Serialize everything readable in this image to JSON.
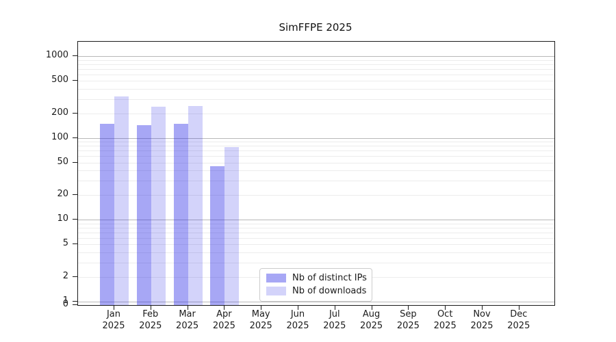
{
  "chart_data": {
    "type": "bar",
    "title": "SimFFPE 2025",
    "year_label": "2025",
    "categories": [
      "Jan",
      "Feb",
      "Mar",
      "Apr",
      "May",
      "Jun",
      "Jul",
      "Aug",
      "Sep",
      "Oct",
      "Nov",
      "Dec"
    ],
    "series": [
      {
        "name": "Nb of distinct IPs",
        "color": "#2222e6",
        "alpha": 0.4,
        "values": [
          148,
          142,
          148,
          45,
          0,
          0,
          0,
          0,
          0,
          0,
          0,
          0
        ]
      },
      {
        "name": "Nb of downloads",
        "color": "#2222e6",
        "alpha": 0.2,
        "values": [
          320,
          242,
          243,
          77,
          0,
          0,
          0,
          0,
          0,
          0,
          0,
          0
        ]
      }
    ],
    "yticks": [
      1000,
      500,
      200,
      100,
      50,
      20,
      10,
      5,
      2,
      1,
      0
    ],
    "yscale": "symlog",
    "ylim": [
      0,
      1500
    ],
    "grid": true,
    "legend_position": "lower-center",
    "colors": {
      "major_grid": "#b8b8b8",
      "minor_grid": "#ececec",
      "axis": "#1a1a1a",
      "effective_bar_dark": "#a7a7f5",
      "effective_bar_light": "#d3d3fa"
    }
  }
}
